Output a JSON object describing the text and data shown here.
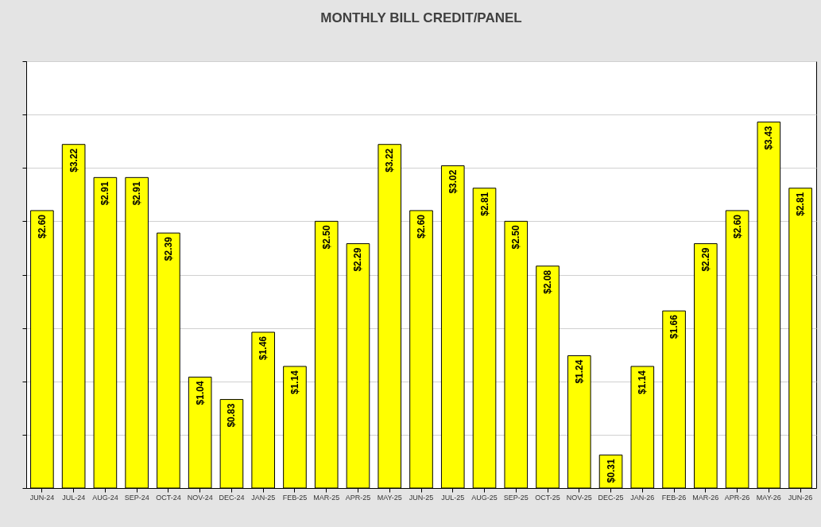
{
  "chart_data": {
    "type": "bar",
    "title": "MONTHLY BILL CREDIT/PANEL",
    "categories": [
      "JUN-24",
      "JUL-24",
      "AUG-24",
      "SEP-24",
      "OCT-24",
      "NOV-24",
      "DEC-24",
      "JAN-25",
      "FEB-25",
      "MAR-25",
      "APR-25",
      "MAY-25",
      "JUN-25",
      "JUL-25",
      "AUG-25",
      "SEP-25",
      "OCT-25",
      "NOV-25",
      "DEC-25",
      "JAN-26",
      "FEB-26",
      "MAR-26",
      "APR-26",
      "MAY-26",
      "JUN-26"
    ],
    "values": [
      2.6,
      3.22,
      2.91,
      2.91,
      2.39,
      1.04,
      0.83,
      1.46,
      1.14,
      2.5,
      2.29,
      3.22,
      2.6,
      3.02,
      2.81,
      2.5,
      2.08,
      1.24,
      0.31,
      1.14,
      1.66,
      2.29,
      2.6,
      3.43,
      2.81
    ],
    "value_labels": [
      "$2.60",
      "$3.22",
      "$2.91",
      "$2.91",
      "$2.39",
      "$1.04",
      "$0.83",
      "$1.46",
      "$1.14",
      "$2.50",
      "$2.29",
      "$3.22",
      "$2.60",
      "$3.02",
      "$2.81",
      "$2.50",
      "$2.08",
      "$1.24",
      "$0.31",
      "$1.14",
      "$1.66",
      "$2.29",
      "$2.60",
      "$3.43",
      "$2.81"
    ],
    "color": "#ffff00",
    "ylim": [
      0,
      4
    ],
    "yticks": [
      {
        "value": 0,
        "label": null
      },
      {
        "value": 0.5,
        "label": null
      },
      {
        "value": 1,
        "label": null
      },
      {
        "value": 1.5,
        "label": null
      },
      {
        "value": 2,
        "label": null
      },
      {
        "value": 2.5,
        "label": null
      },
      {
        "value": 3,
        "label": null
      },
      {
        "value": 3.5,
        "label": null
      },
      {
        "value": 4,
        "label": null
      }
    ],
    "grid": "y",
    "tick_labels": "x"
  }
}
